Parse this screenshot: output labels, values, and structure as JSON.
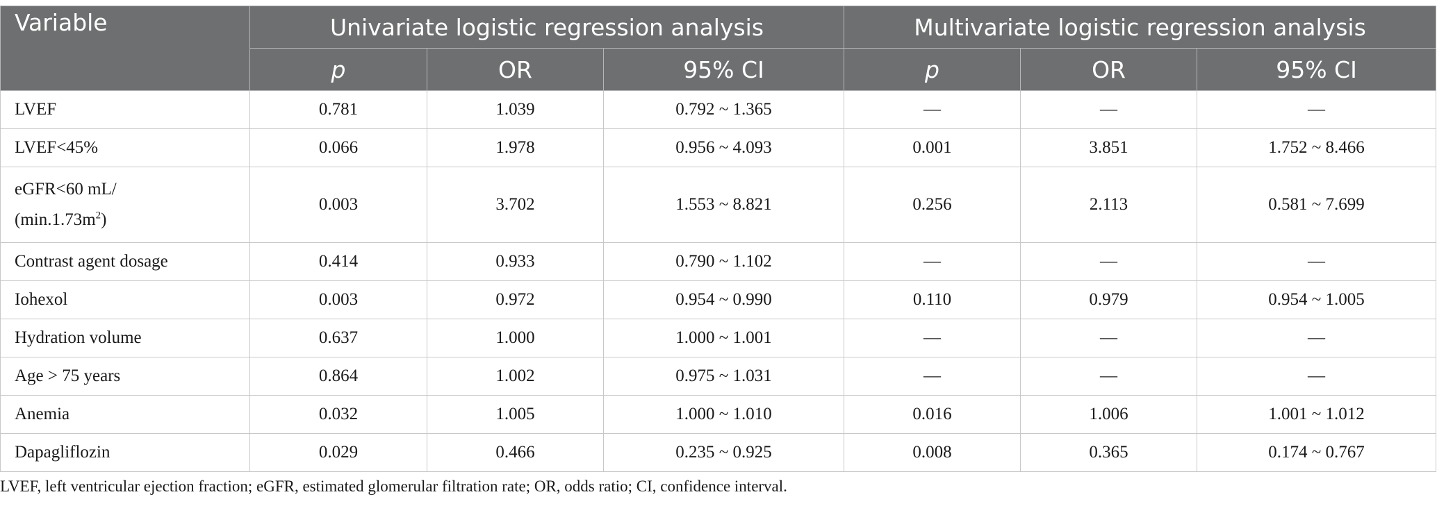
{
  "header": {
    "variable": "Variable",
    "univariate": "Univariate logistic regression analysis",
    "multivariate": "Multivariate logistic regression analysis",
    "sub": {
      "p": "p",
      "or": "OR",
      "ci": "95% CI"
    }
  },
  "rows": [
    {
      "variable": "LVEF",
      "u_p": "0.781",
      "u_or": "1.039",
      "u_ci": "0.792 ~ 1.365",
      "m_p": "—",
      "m_or": "—",
      "m_ci": "—"
    },
    {
      "variable": "LVEF<45%",
      "u_p": "0.066",
      "u_or": "1.978",
      "u_ci": "0.956 ~ 4.093",
      "m_p": "0.001",
      "m_or": "3.851",
      "m_ci": "1.752 ~ 8.466"
    },
    {
      "variable_line1": "eGFR<60 mL/",
      "variable_line2": "(min.1.73m",
      "variable_sup": "2",
      "variable_tail": ")",
      "u_p": "0.003",
      "u_or": "3.702",
      "u_ci": "1.553 ~ 8.821",
      "m_p": "0.256",
      "m_or": "2.113",
      "m_ci": "0.581 ~ 7.699"
    },
    {
      "variable": "Contrast agent dosage",
      "u_p": "0.414",
      "u_or": "0.933",
      "u_ci": "0.790 ~ 1.102",
      "m_p": "—",
      "m_or": "—",
      "m_ci": "—"
    },
    {
      "variable": "Iohexol",
      "u_p": "0.003",
      "u_or": "0.972",
      "u_ci": "0.954 ~ 0.990",
      "m_p": "0.110",
      "m_or": "0.979",
      "m_ci": "0.954 ~ 1.005"
    },
    {
      "variable": "Hydration volume",
      "u_p": "0.637",
      "u_or": "1.000",
      "u_ci": "1.000 ~ 1.001",
      "m_p": "—",
      "m_or": "—",
      "m_ci": "—"
    },
    {
      "variable": "Age > 75 years",
      "u_p": "0.864",
      "u_or": "1.002",
      "u_ci": "0.975 ~ 1.031",
      "m_p": "—",
      "m_or": "—",
      "m_ci": "—"
    },
    {
      "variable": "Anemia",
      "u_p": "0.032",
      "u_or": "1.005",
      "u_ci": "1.000 ~ 1.010",
      "m_p": "0.016",
      "m_or": "1.006",
      "m_ci": "1.001 ~ 1.012"
    },
    {
      "variable": "Dapagliflozin",
      "u_p": "0.029",
      "u_or": "0.466",
      "u_ci": "0.235 ~ 0.925",
      "m_p": "0.008",
      "m_or": "0.365",
      "m_ci": "0.174 ~ 0.767"
    }
  ],
  "footnote": "LVEF, left ventricular ejection fraction; eGFR, estimated glomerular filtration rate; OR, odds ratio; CI, confidence interval."
}
